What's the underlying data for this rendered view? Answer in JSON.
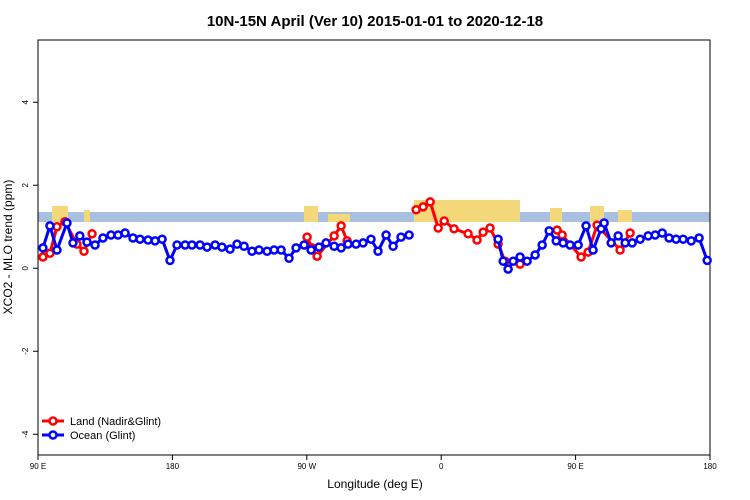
{
  "chart_data": {
    "type": "line",
    "title": "10N-15N April (Ver 10)   2015-01-01 to 2020-12-18",
    "x_label": "Longitude (deg E)",
    "y_label": "XCO2 - MLO trend (ppm)",
    "xlim": [
      90,
      540
    ],
    "ylim": [
      -4.5,
      5.5
    ],
    "xticks": [
      {
        "value": 90,
        "label": "90 E"
      },
      180,
      {
        "value": 270,
        "label": "90 W"
      },
      {
        "value": 360,
        "label": "0"
      },
      {
        "value": 450,
        "label": "90 E"
      },
      {
        "value": 540,
        "label": "180"
      }
    ],
    "yticks": [
      -4,
      -2,
      0,
      2,
      4
    ],
    "legend": "bottomleft",
    "series": [
      {
        "name": "Land (Nadir&Glint)",
        "color": "#ff0000",
        "x": [
          93.3,
          98,
          102.7,
          108.1,
          116.1,
          120.8,
          126.2,
          null,
          270.2,
          273.5,
          276.9,
          288.3,
          293.0,
          297.0,
          null,
          343.2,
          347.9,
          352.6,
          358.0,
          362.0,
          368.6,
          378.0,
          384.0,
          388.1,
          392.7,
          398.1,
          402.8,
          412.8,
          null,
          437.6,
          441.0,
          453.7,
          458.4,
          464.4,
          479.8,
          486.5
        ],
        "values": [
          0.27,
          0.36,
          1.0,
          1.12,
          0.58,
          0.41,
          0.83,
          null,
          0.75,
          0.49,
          0.29,
          0.78,
          1.02,
          0.66,
          null,
          1.41,
          1.48,
          1.6,
          0.97,
          1.14,
          0.95,
          0.83,
          0.68,
          0.87,
          0.97,
          0.58,
          0.17,
          0.1,
          null,
          0.92,
          0.8,
          0.27,
          0.39,
          1.04,
          0.44,
          0.85
        ]
      },
      {
        "name": "Ocean (Glint)",
        "color": "#0000ff",
        "x": [
          93.3,
          98,
          102.7,
          109.4,
          113.4,
          118,
          122.8,
          128.2,
          133.5,
          138.9,
          143.6,
          148.3,
          153.6,
          158.3,
          163.7,
          168.4,
          173.1,
          178.4,
          183.1,
          188.5,
          193.1,
          198.5,
          203.2,
          208.6,
          213.2,
          218.6,
          223.3,
          228.0,
          233.3,
          238.0,
          243.4,
          248.1,
          252.8,
          258.1,
          262.8,
          268.2,
          272.9,
          278.2,
          282.9,
          288.3,
          293.0,
          297.6,
          303.0,
          307.7,
          313.0,
          317.7,
          323.1,
          327.8,
          333.1,
          338.5,
          null,
          398.1,
          401.5,
          404.8,
          408.2,
          412.8,
          417.5,
          422.9,
          427.6,
          432.3,
          437.0,
          441.6,
          446.3,
          451.7,
          457.0,
          461.7,
          467.1,
          469.1,
          473.8,
          478.5,
          483.2,
          487.9,
          493.2,
          498.6,
          503.3,
          508.0,
          512.6,
          517.3,
          522.0,
          527.4,
          532.7,
          538.1
        ],
        "values": [
          0.49,
          1.02,
          0.44,
          1.09,
          0.61,
          0.78,
          0.63,
          0.56,
          0.73,
          0.8,
          0.8,
          0.85,
          0.73,
          0.7,
          0.68,
          0.66,
          0.7,
          0.19,
          0.56,
          0.56,
          0.56,
          0.56,
          0.51,
          0.56,
          0.51,
          0.46,
          0.58,
          0.53,
          0.41,
          0.44,
          0.41,
          0.44,
          0.44,
          0.24,
          0.49,
          0.56,
          0.44,
          0.51,
          0.61,
          0.53,
          0.49,
          0.58,
          0.58,
          0.61,
          0.7,
          0.41,
          0.8,
          0.53,
          0.75,
          0.8,
          null,
          0.7,
          0.17,
          -0.02,
          0.17,
          0.27,
          0.17,
          0.32,
          0.56,
          0.9,
          0.66,
          0.61,
          0.56,
          0.56,
          1.02,
          0.44,
          0.95,
          1.09,
          0.61,
          0.78,
          0.61,
          0.61,
          0.7,
          0.78,
          0.8,
          0.85,
          0.73,
          0.7,
          0.7,
          0.66,
          0.73,
          0.19
        ]
      }
    ]
  }
}
